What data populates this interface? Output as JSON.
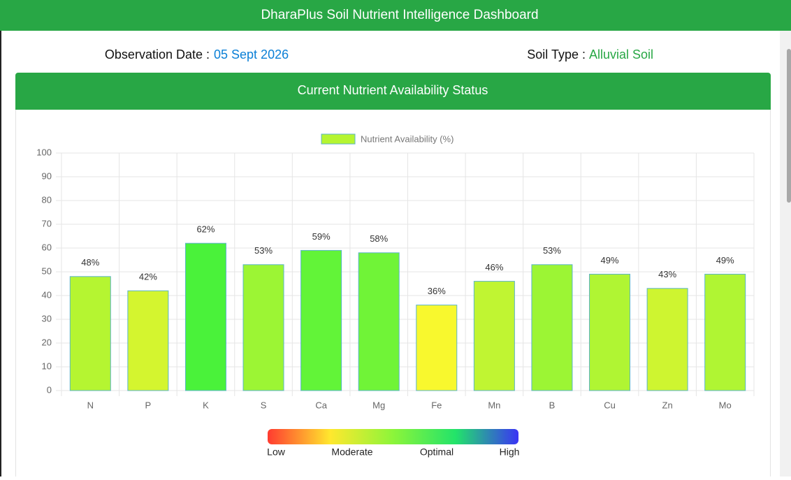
{
  "header": {
    "title": "DharaPlus Soil Nutrient Intelligence Dashboard"
  },
  "info": {
    "date_label": "Observation Date :",
    "date_value": "05 Sept 2026",
    "soil_label": "Soil Type :",
    "soil_value": "Alluvial Soil"
  },
  "card": {
    "title": "Current Nutrient Availability Status"
  },
  "chart_data": {
    "type": "bar",
    "categories": [
      "N",
      "P",
      "K",
      "S",
      "Ca",
      "Mg",
      "Fe",
      "Mn",
      "B",
      "Cu",
      "Zn",
      "Mo"
    ],
    "series": [
      {
        "name": "Nutrient Availability (%)",
        "color": "#b5f531",
        "border_color": "#5ab4c8",
        "bar_colors": [
          "#b5f531",
          "#d4f52f",
          "#4af23a",
          "#9cf534",
          "#62f438",
          "#70f437",
          "#f8f82e",
          "#c0f532",
          "#9cf534",
          "#b0f533",
          "#cef530",
          "#b0f533"
        ],
        "values": [
          48,
          42,
          62,
          53,
          59,
          58,
          36,
          46,
          53,
          49,
          43,
          49
        ],
        "value_labels": [
          "48%",
          "42%",
          "62%",
          "53%",
          "59%",
          "58%",
          "36%",
          "46%",
          "53%",
          "49%",
          "43%",
          "49%"
        ]
      }
    ],
    "ylim": [
      0,
      100
    ],
    "yticks": [
      0,
      10,
      20,
      30,
      40,
      50,
      60,
      70,
      80,
      90,
      100
    ],
    "grid": true,
    "scale": {
      "labels": [
        "Low",
        "Moderate",
        "Optimal",
        "High"
      ],
      "colors": [
        "#ff3b30",
        "#ffe82e",
        "#8cf53a",
        "#22e36a",
        "#3a33f5"
      ]
    }
  }
}
